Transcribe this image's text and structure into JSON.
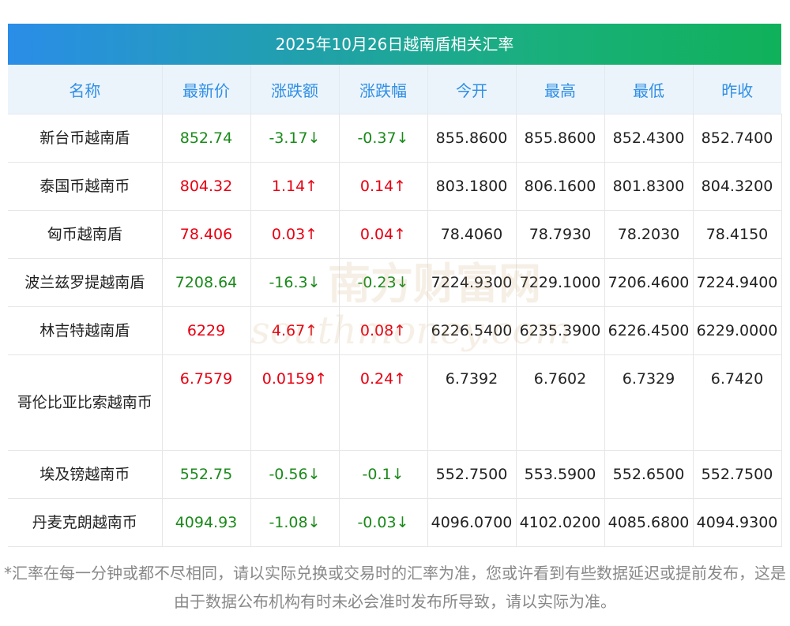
{
  "title": "2025年10月26日越南盾相关汇率",
  "headers": [
    "名称",
    "最新价",
    "涨跌额",
    "涨跌幅",
    "今开",
    "最高",
    "最低",
    "昨收"
  ],
  "rows": [
    {
      "name": "新台币越南盾",
      "latest": "852.74",
      "change": "-3.17↓",
      "pct": "-0.37↓",
      "open": "855.8600",
      "high": "855.8600",
      "low": "852.4300",
      "prev": "852.7400",
      "dir": "down"
    },
    {
      "name": "泰国币越南币",
      "latest": "804.32",
      "change": "1.14↑",
      "pct": "0.14↑",
      "open": "803.1800",
      "high": "806.1600",
      "low": "801.8300",
      "prev": "804.3200",
      "dir": "up"
    },
    {
      "name": "匈币越南盾",
      "latest": "78.406",
      "change": "0.03↑",
      "pct": "0.04↑",
      "open": "78.4060",
      "high": "78.7930",
      "low": "78.2030",
      "prev": "78.4150",
      "dir": "up"
    },
    {
      "name": "波兰兹罗提越南盾",
      "latest": "7208.64",
      "change": "-16.3↓",
      "pct": "-0.23↓",
      "open": "7224.9300",
      "high": "7229.1000",
      "low": "7206.4600",
      "prev": "7224.9400",
      "dir": "down"
    },
    {
      "name": "林吉特越南盾",
      "latest": "6229",
      "change": "4.67↑",
      "pct": "0.08↑",
      "open": "6226.5400",
      "high": "6235.3900",
      "low": "6226.4500",
      "prev": "6229.0000",
      "dir": "up"
    },
    {
      "name": "哥伦比亚比索越南币",
      "latest": "6.7579",
      "change": "0.0159↑",
      "pct": "0.24↑",
      "open": "6.7392",
      "high": "6.7602",
      "low": "6.7329",
      "prev": "6.7420",
      "dir": "up"
    },
    {
      "name": "埃及镑越南币",
      "latest": "552.75",
      "change": "-0.56↓",
      "pct": "-0.1↓",
      "open": "552.7500",
      "high": "553.5900",
      "low": "552.6500",
      "prev": "552.7500",
      "dir": "down"
    },
    {
      "name": "丹麦克朗越南币",
      "latest": "4094.93",
      "change": "-1.08↓",
      "pct": "-0.03↓",
      "open": "4096.0700",
      "high": "4102.0200",
      "low": "4085.6800",
      "prev": "4094.9300",
      "dir": "down"
    }
  ],
  "watermark": {
    "cn": "南方财富网",
    "en": "southmoney.com"
  },
  "footnote": "*汇率在每一分钟或都不尽相同，请以实际兑换或交易时的汇率为准，您或许看到有些数据延迟或提前发布，这是由于数据公布机构有时未必会准时发布所导致，请以实际为准。",
  "colors": {
    "up": "#e60012",
    "down": "#1a8a1a",
    "header_text": "#2f8fe6",
    "header_bg": "#ecf4fb"
  }
}
